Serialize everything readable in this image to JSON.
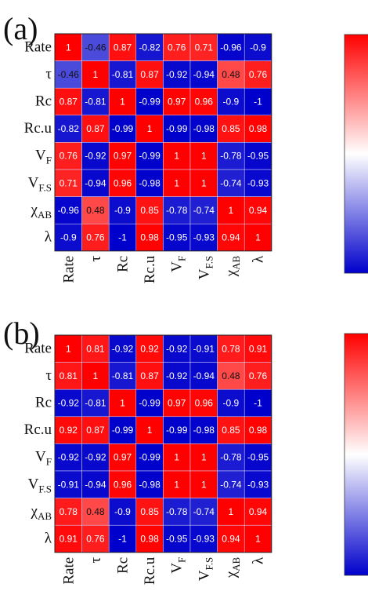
{
  "colors": {
    "high": "#ff0000",
    "mid": "#ffffff",
    "low": "#0000cc",
    "grid": "#d8d8ff"
  },
  "chart_data": [
    {
      "type": "heatmap",
      "panel_label": "(a)",
      "row_labels": [
        "Rate",
        "τ",
        "Rc",
        "Rc.u",
        "V_F",
        "V_F.S",
        "χ_AB",
        "λ"
      ],
      "col_labels": [
        "Rate",
        "τ",
        "Rc",
        "Rc.u",
        "V_F",
        "V_F.S",
        "χ_AB",
        "λ"
      ],
      "values": [
        [
          1,
          -0.46,
          0.87,
          -0.82,
          0.76,
          0.71,
          -0.96,
          -0.9
        ],
        [
          -0.46,
          1,
          -0.81,
          0.87,
          -0.92,
          -0.94,
          0.48,
          0.76
        ],
        [
          0.87,
          -0.81,
          1,
          -0.99,
          0.97,
          0.96,
          -0.9,
          -1
        ],
        [
          -0.82,
          0.87,
          -0.99,
          1,
          -0.99,
          -0.98,
          0.85,
          0.98
        ],
        [
          0.76,
          -0.92,
          0.97,
          -0.99,
          1,
          1,
          -0.78,
          -0.95
        ],
        [
          0.71,
          -0.94,
          0.96,
          -0.98,
          1,
          1,
          -0.74,
          -0.93
        ],
        [
          -0.96,
          0.48,
          -0.9,
          0.85,
          -0.78,
          -0.74,
          1,
          0.94
        ],
        [
          -0.9,
          0.76,
          -1,
          0.98,
          -0.95,
          -0.93,
          0.94,
          1
        ]
      ],
      "colorbar": {
        "range": [
          -1,
          1
        ]
      }
    },
    {
      "type": "heatmap",
      "panel_label": "(b)",
      "row_labels": [
        "Rate",
        "τ",
        "Rc",
        "Rc.u",
        "V_F",
        "V_F.S",
        "χ_AB",
        "λ"
      ],
      "col_labels": [
        "Rate",
        "τ",
        "Rc",
        "Rc.u",
        "V_F",
        "V_F.S",
        "χ_AB",
        "λ"
      ],
      "values": [
        [
          1,
          0.81,
          -0.92,
          0.92,
          -0.92,
          -0.91,
          0.78,
          0.91
        ],
        [
          0.81,
          1,
          -0.81,
          0.87,
          -0.92,
          -0.94,
          0.48,
          0.76
        ],
        [
          -0.92,
          -0.81,
          1,
          -0.99,
          0.97,
          0.96,
          -0.9,
          -1
        ],
        [
          0.92,
          0.87,
          -0.99,
          1,
          -0.99,
          -0.98,
          0.85,
          0.98
        ],
        [
          -0.92,
          -0.92,
          0.97,
          -0.99,
          1,
          1,
          -0.78,
          -0.95
        ],
        [
          -0.91,
          -0.94,
          0.96,
          -0.98,
          1,
          1,
          -0.74,
          -0.93
        ],
        [
          0.78,
          0.48,
          -0.9,
          0.85,
          -0.78,
          -0.74,
          1,
          0.94
        ],
        [
          0.91,
          0.76,
          -1,
          0.98,
          -0.95,
          -0.93,
          0.94,
          1
        ]
      ],
      "colorbar": {
        "range": [
          -1,
          1
        ]
      }
    }
  ]
}
